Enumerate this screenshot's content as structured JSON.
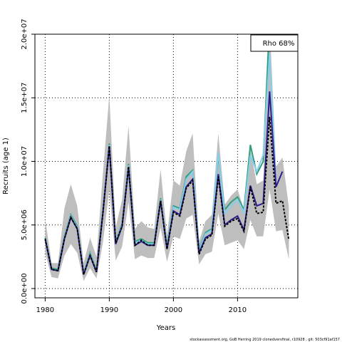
{
  "chart_data": {
    "type": "line",
    "xlabel": "Years",
    "ylabel": "Recruits (age 1)",
    "annotation": "Rho 68%",
    "footer": "stockassessment.org, GoB Herring 2019 clonedversfinal, r10928 , git: 503cf91af157",
    "x": [
      1980,
      1981,
      1982,
      1983,
      1984,
      1985,
      1986,
      1987,
      1988,
      1989,
      1990,
      1991,
      1992,
      1993,
      1994,
      1995,
      1996,
      1997,
      1998,
      1999,
      2000,
      2001,
      2002,
      2003,
      2004,
      2005,
      2006,
      2007,
      2008,
      2009,
      2010,
      2011,
      2012,
      2013,
      2014,
      2015,
      2016,
      2017,
      2018
    ],
    "band": {
      "color": "#bebebe",
      "upper": [
        5500000.0,
        2000000.0,
        2000000.0,
        6300000.0,
        8200000.0,
        6500000.0,
        2000000.0,
        4000000.0,
        2500000.0,
        9000000.0,
        15200000.0,
        4800000.0,
        7000000.0,
        12800000.0,
        4700000.0,
        5300000.0,
        4800000.0,
        4700000.0,
        9400000.0,
        4200000.0,
        8500000.0,
        8100000.0,
        10800000.0,
        12200000.0,
        3700000.0,
        5300000.0,
        5800000.0,
        12200000.0,
        6600000.0,
        7300000.0,
        7800000.0,
        6200000.0,
        11000000.0,
        8200000.0,
        8500000.0,
        21000000.0,
        9600000.0,
        10300000.0,
        6400000.0
      ],
      "lower": [
        2800000.0,
        900000.0,
        800000.0,
        2600000.0,
        3500000.0,
        2800000.0,
        600000.0,
        1600000.0,
        800000.0,
        3600000.0,
        7800000.0,
        2200000.0,
        3300000.0,
        6800000.0,
        2300000.0,
        2600000.0,
        2400000.0,
        2400000.0,
        4800000.0,
        2100000.0,
        4100000.0,
        3900000.0,
        5500000.0,
        5800000.0,
        1900000.0,
        2700000.0,
        2900000.0,
        5900000.0,
        3400000.0,
        3600000.0,
        3800000.0,
        3100000.0,
        5400000.0,
        4100000.0,
        4100000.0,
        7800000.0,
        4500000.0,
        4600000.0,
        2300000.0
      ]
    },
    "series": [
      {
        "color": "#2e9e7a",
        "values": [
          4000000.0,
          1600000.0,
          1500000.0,
          4100000.0,
          5800000.0,
          4900000.0,
          1200000.0,
          2800000.0,
          1400000.0,
          6100000.0,
          11400000.0,
          3700000.0,
          5100000.0,
          9800000.0,
          3700000.0,
          3900000.0,
          3600000.0,
          3600000.0,
          7100000.0,
          3300000.0,
          6500000.0,
          6300000.0,
          8800000.0,
          9300000.0,
          3100000.0,
          4400000.0,
          4700000.0,
          10500000.0,
          6200000.0,
          6800000.0,
          7200000.0,
          6200000.0,
          11300000.0,
          9000000.0,
          10000000.0,
          21000000.0,
          null,
          null,
          null
        ]
      },
      {
        "color": "#87ceeb",
        "values": [
          3900000.0,
          1500000.0,
          1400000.0,
          4000000.0,
          5700000.0,
          4800000.0,
          1200000.0,
          2700000.0,
          1300000.0,
          6000000.0,
          11300000.0,
          3600000.0,
          5000000.0,
          9700000.0,
          3600000.0,
          3800000.0,
          3500000.0,
          3500000.0,
          7000000.0,
          3200000.0,
          6400000.0,
          6200000.0,
          8600000.0,
          9200000.0,
          3000000.0,
          4300000.0,
          4600000.0,
          10700000.0,
          5900000.0,
          6500000.0,
          7000000.0,
          6000000.0,
          10500000.0,
          9200000.0,
          10500000.0,
          18500000.0,
          8300000.0,
          null,
          null
        ]
      },
      {
        "color": "#2c1e8c",
        "values": [
          3900000.0,
          1500000.0,
          1400000.0,
          3900000.0,
          5600000.0,
          4700000.0,
          1100000.0,
          2600000.0,
          1300000.0,
          5900000.0,
          11200000.0,
          3500000.0,
          4900000.0,
          9500000.0,
          3400000.0,
          3700000.0,
          3400000.0,
          3400000.0,
          6900000.0,
          3100000.0,
          6100000.0,
          5800000.0,
          8000000.0,
          8600000.0,
          2800000.0,
          4000000.0,
          4300000.0,
          9000000.0,
          5000000.0,
          5400000.0,
          5700000.0,
          4600000.0,
          8100000.0,
          6500000.0,
          6700000.0,
          15500000.0,
          8000000.0,
          9200000.0,
          null
        ]
      },
      {
        "color": "#000000",
        "dashed": true,
        "values": [
          3900000.0,
          1500000.0,
          1400000.0,
          3900000.0,
          5600000.0,
          4700000.0,
          1100000.0,
          2600000.0,
          1300000.0,
          5900000.0,
          11200000.0,
          3600000.0,
          4900000.0,
          9600000.0,
          3400000.0,
          3800000.0,
          3400000.0,
          3400000.0,
          6900000.0,
          3100000.0,
          6000000.0,
          5700000.0,
          7900000.0,
          8500000.0,
          2700000.0,
          3900000.0,
          4200000.0,
          8800000.0,
          4900000.0,
          5300000.0,
          5500000.0,
          4500000.0,
          8000000.0,
          5900000.0,
          6000000.0,
          13500000.0,
          6700000.0,
          6900000.0,
          3800000.0
        ]
      }
    ],
    "xlim": [
      1978.4,
      2019.4
    ],
    "ylim": [
      -730000,
      20000000
    ],
    "xticks": [
      1980,
      1990,
      2000,
      2010
    ],
    "yticks": [
      {
        "value": 0,
        "label": "0.0e+00"
      },
      {
        "value": 5000000,
        "label": "5.0e+06"
      },
      {
        "value": 10000000,
        "label": "1.0e+07"
      },
      {
        "value": 15000000,
        "label": "1.5e+07"
      },
      {
        "value": 20000000,
        "label": "2.0e+07"
      }
    ],
    "grid": true
  }
}
